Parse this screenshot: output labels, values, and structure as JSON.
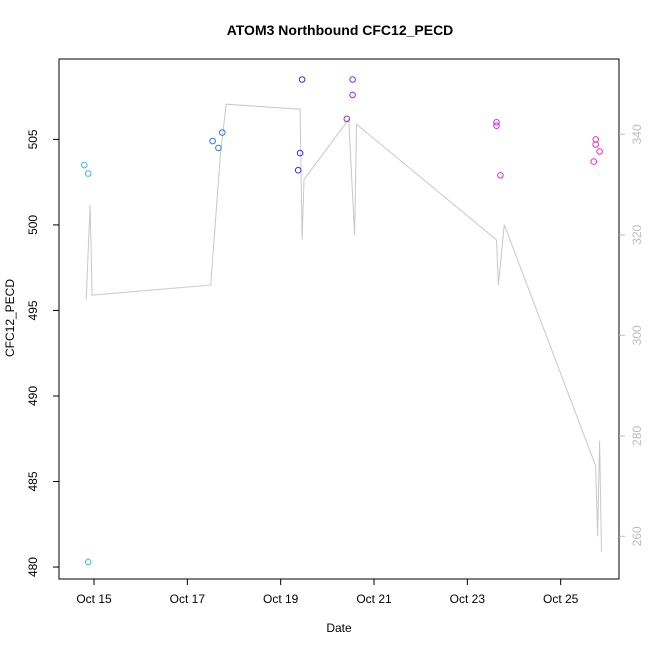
{
  "chart_data": {
    "type": "scatter",
    "title": "ATOM3 Northbound CFC12_PECD",
    "xlabel": "Date",
    "ylabel": "CFC12_PECD",
    "xlim": [
      "2016-10-14 06:00",
      "2016-10-26 06:00"
    ],
    "ylim": [
      479.3,
      509.7
    ],
    "y2lim": [
      251.5,
      355.0
    ],
    "x_ticks": [
      {
        "label": "Oct 15",
        "date": "2016-10-15 00:00"
      },
      {
        "label": "Oct 17",
        "date": "2016-10-17 00:00"
      },
      {
        "label": "Oct 19",
        "date": "2016-10-19 00:00"
      },
      {
        "label": "Oct 21",
        "date": "2016-10-21 00:00"
      },
      {
        "label": "Oct 23",
        "date": "2016-10-23 00:00"
      },
      {
        "label": "Oct 25",
        "date": "2016-10-25 00:00"
      }
    ],
    "y_ticks": [
      480,
      485,
      490,
      495,
      500,
      505
    ],
    "y2_ticks": [
      260,
      280,
      300,
      320,
      340
    ],
    "grid": false,
    "points": [
      {
        "x": "2016-10-14 19:00",
        "y": 503.5,
        "color": "#3bb8e8"
      },
      {
        "x": "2016-10-14 21:00",
        "y": 503.0,
        "color": "#3bb8e8"
      },
      {
        "x": "2016-10-14 21:00",
        "y": 480.3,
        "color": "#3bb8e8"
      },
      {
        "x": "2016-10-17 13:00",
        "y": 504.9,
        "color": "#2c78e0"
      },
      {
        "x": "2016-10-17 16:00",
        "y": 504.5,
        "color": "#2c78e0"
      },
      {
        "x": "2016-10-17 18:00",
        "y": 505.4,
        "color": "#2c78e0"
      },
      {
        "x": "2016-10-19 09:00",
        "y": 503.2,
        "color": "#3030e0"
      },
      {
        "x": "2016-10-19 10:00",
        "y": 504.2,
        "color": "#3030e0"
      },
      {
        "x": "2016-10-19 11:00",
        "y": 508.5,
        "color": "#3030e0"
      },
      {
        "x": "2016-10-20 10:00",
        "y": 506.2,
        "color": "#8830e0"
      },
      {
        "x": "2016-10-20 13:00",
        "y": 507.6,
        "color": "#8830e0"
      },
      {
        "x": "2016-10-20 13:00",
        "y": 508.5,
        "color": "#8830e0"
      },
      {
        "x": "2016-10-23 15:00",
        "y": 506.0,
        "color": "#d030d8"
      },
      {
        "x": "2016-10-23 15:00",
        "y": 505.8,
        "color": "#d030d8"
      },
      {
        "x": "2016-10-23 17:00",
        "y": 502.9,
        "color": "#d030d8"
      },
      {
        "x": "2016-10-25 17:00",
        "y": 503.7,
        "color": "#e830c0"
      },
      {
        "x": "2016-10-25 18:00",
        "y": 504.7,
        "color": "#e830c0"
      },
      {
        "x": "2016-10-25 18:00",
        "y": 505.0,
        "color": "#e830c0"
      },
      {
        "x": "2016-10-25 20:00",
        "y": 504.3,
        "color": "#e830c0"
      }
    ],
    "line_series": {
      "axis": "right",
      "color": "#c8c8c8",
      "points": [
        {
          "x": "2016-10-14 20:00",
          "y": 307
        },
        {
          "x": "2016-10-14 22:00",
          "y": 326
        },
        {
          "x": "2016-10-14 23:00",
          "y": 308
        },
        {
          "x": "2016-10-17 12:00",
          "y": 310
        },
        {
          "x": "2016-10-17 17:00",
          "y": 336
        },
        {
          "x": "2016-10-17 20:00",
          "y": 346
        },
        {
          "x": "2016-10-19 10:00",
          "y": 345
        },
        {
          "x": "2016-10-19 11:00",
          "y": 319
        },
        {
          "x": "2016-10-19 12:00",
          "y": 331
        },
        {
          "x": "2016-10-20 11:00",
          "y": 343
        },
        {
          "x": "2016-10-20 14:00",
          "y": 320
        },
        {
          "x": "2016-10-20 15:00",
          "y": 342
        },
        {
          "x": "2016-10-23 15:00",
          "y": 319
        },
        {
          "x": "2016-10-23 16:00",
          "y": 310
        },
        {
          "x": "2016-10-23 19:00",
          "y": 322
        },
        {
          "x": "2016-10-25 18:00",
          "y": 274
        },
        {
          "x": "2016-10-25 19:00",
          "y": 260
        },
        {
          "x": "2016-10-25 20:00",
          "y": 279
        },
        {
          "x": "2016-10-25 21:00",
          "y": 257
        }
      ]
    }
  }
}
